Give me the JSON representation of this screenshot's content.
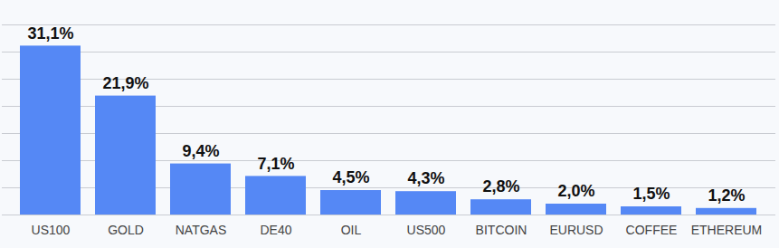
{
  "chart_data": {
    "type": "bar",
    "categories": [
      "US100",
      "GOLD",
      "NATGAS",
      "DE40",
      "OIL",
      "US500",
      "BITCOIN",
      "EURUSD",
      "COFFEE",
      "ETHEREUM"
    ],
    "values": [
      31.1,
      21.9,
      9.4,
      7.1,
      4.5,
      4.3,
      2.8,
      2.0,
      1.5,
      1.2
    ],
    "value_labels": [
      "31,1%",
      "21,9%",
      "9,4%",
      "7,1%",
      "4,5%",
      "4,3%",
      "2,8%",
      "2,0%",
      "1,5%",
      "1,2%"
    ],
    "color": "#5588f5",
    "ylim": [
      0,
      35
    ],
    "yticks": [
      0,
      5,
      10,
      15,
      20,
      25,
      30,
      35
    ],
    "grid": true,
    "data_labels": true,
    "tick_labels": "x"
  }
}
